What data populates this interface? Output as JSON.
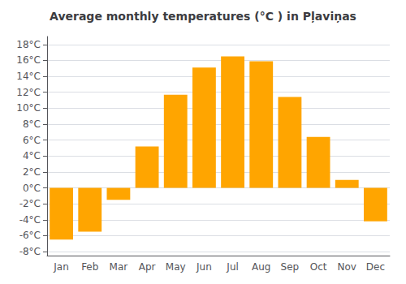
{
  "chart_data": {
    "type": "bar",
    "title": "Average monthly temperatures (°C ) in Pļaviņas",
    "categories": [
      "Jan",
      "Feb",
      "Mar",
      "Apr",
      "May",
      "Jun",
      "Jul",
      "Aug",
      "Sep",
      "Oct",
      "Nov",
      "Dec"
    ],
    "values": [
      -6.5,
      -5.5,
      -1.5,
      5.2,
      11.7,
      15.1,
      16.5,
      15.9,
      11.4,
      6.4,
      1.0,
      -4.2
    ],
    "color": "#FFA500",
    "ylim": [
      -8.5,
      19
    ],
    "yticks": [
      {
        "value": -8,
        "label": "-8°C"
      },
      {
        "value": -6,
        "label": "-6°C"
      },
      {
        "value": -4,
        "label": "-4°C"
      },
      {
        "value": -2,
        "label": "-2°C"
      },
      {
        "value": 0,
        "label": "0°C"
      },
      {
        "value": 2,
        "label": "2°C"
      },
      {
        "value": 4,
        "label": "4°C"
      },
      {
        "value": 6,
        "label": "6°C"
      },
      {
        "value": 8,
        "label": "8°C"
      },
      {
        "value": 10,
        "label": "10°C"
      },
      {
        "value": 12,
        "label": "12°C"
      },
      {
        "value": 14,
        "label": "14°C"
      },
      {
        "value": 16,
        "label": "16°C"
      },
      {
        "value": 18,
        "label": "18°C"
      }
    ],
    "grid": true
  }
}
